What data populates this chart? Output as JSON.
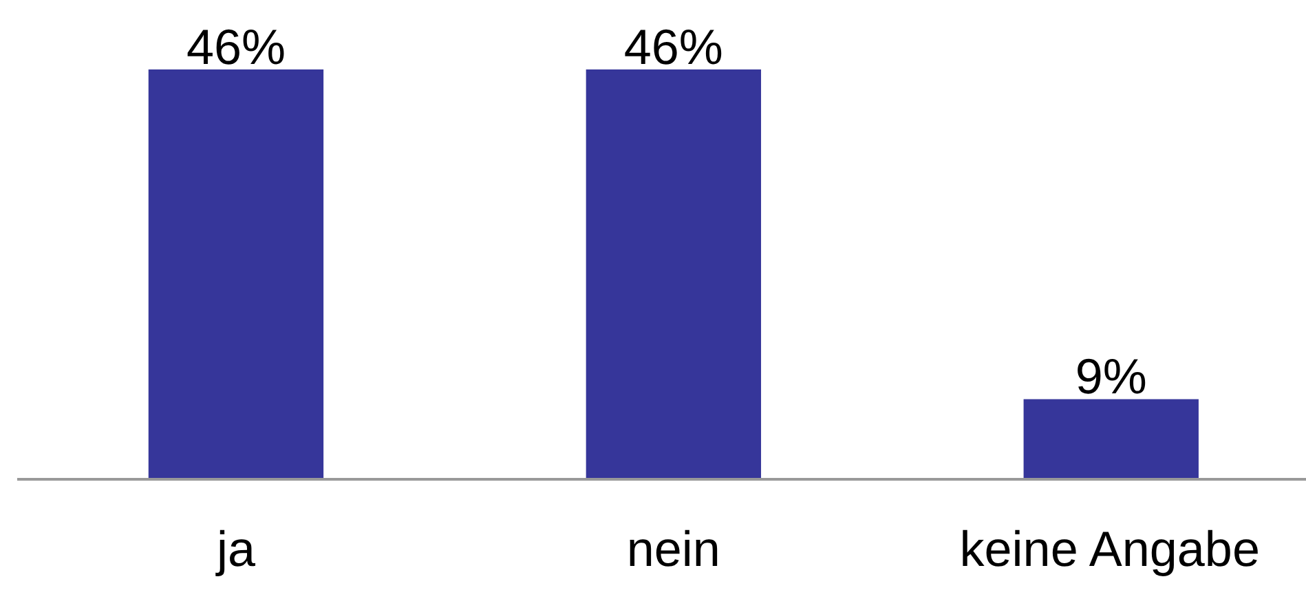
{
  "chart_data": {
    "type": "bar",
    "categories": [
      "ja",
      "nein",
      "keine Angabe"
    ],
    "values": [
      46,
      46,
      9
    ],
    "value_labels": [
      "46%",
      "46%",
      "9%"
    ],
    "color": "#36369a",
    "grid": false
  }
}
